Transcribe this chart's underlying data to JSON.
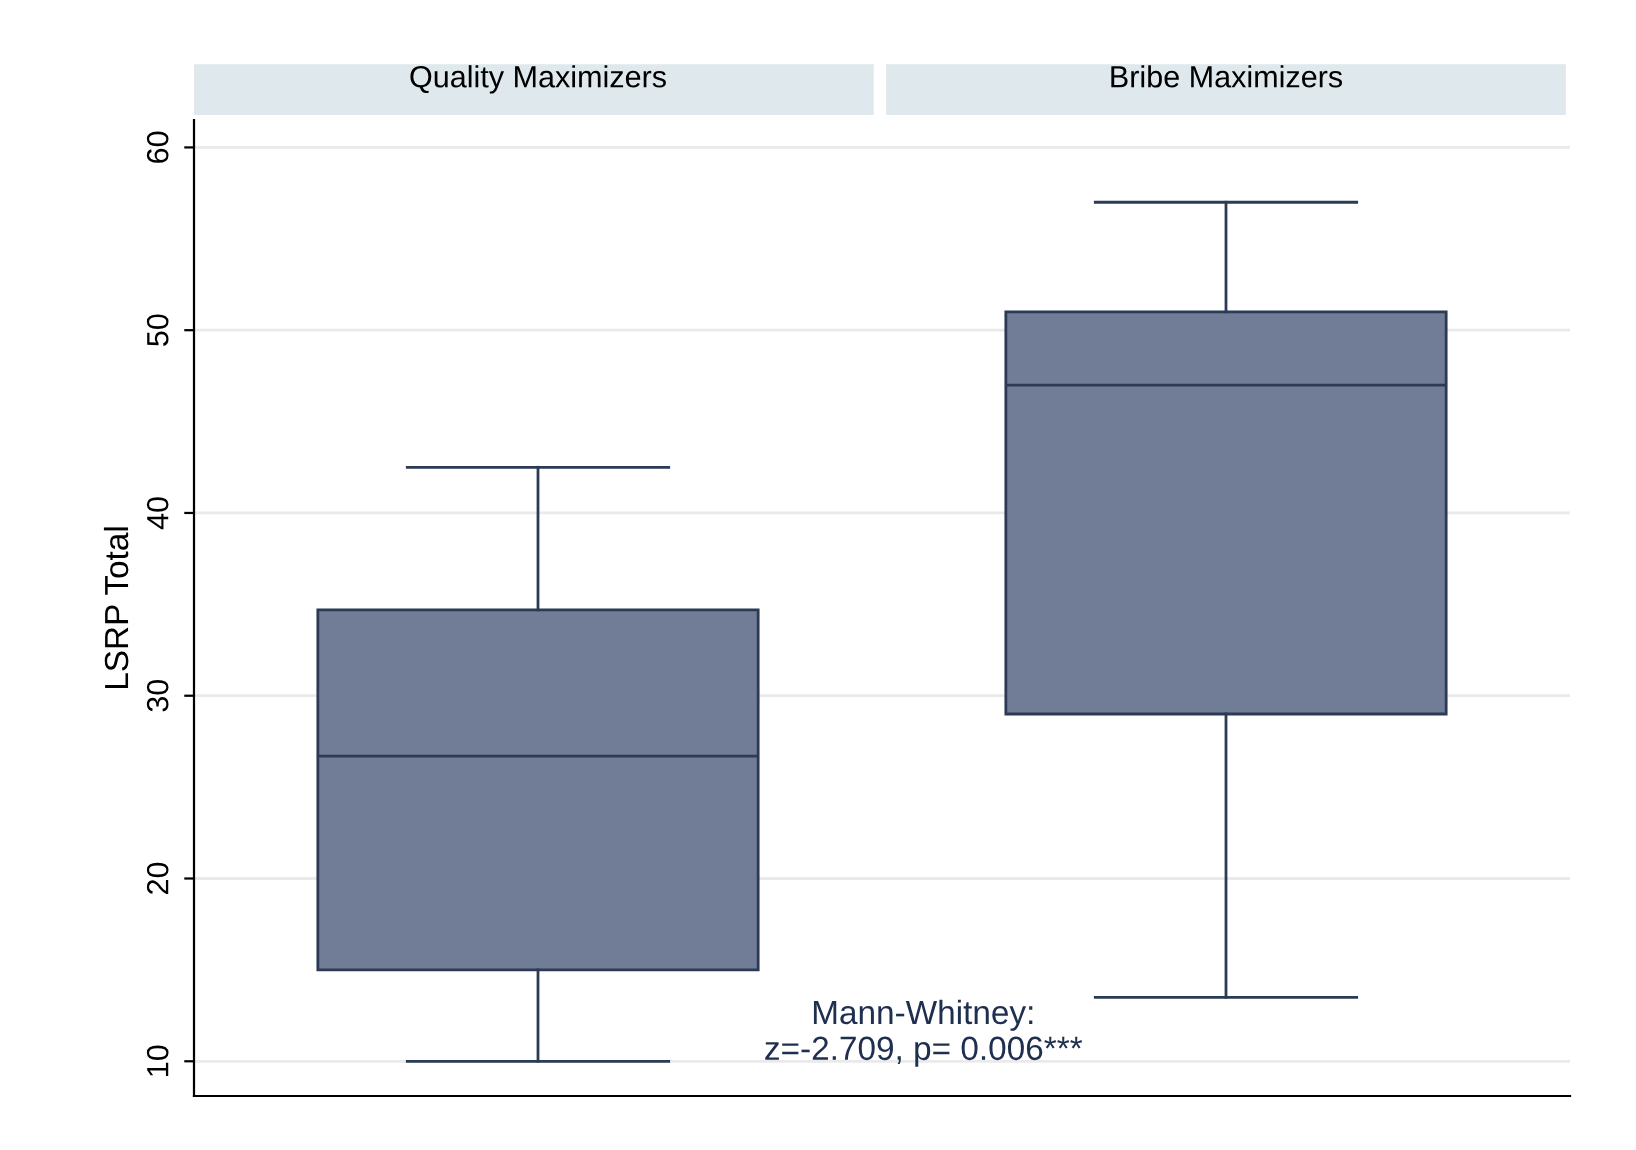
{
  "chart_data": {
    "type": "box",
    "ylabel": "LSRP Total",
    "categories": [
      "Quality Maximizers",
      "Bribe Maximizers"
    ],
    "color": "#717d96",
    "boxes": [
      {
        "low": 10,
        "q1": 15,
        "median": 26.7,
        "q3": 34.7,
        "high": 42.5
      },
      {
        "low": 13.5,
        "q1": 29,
        "median": 47,
        "q3": 51,
        "high": 57
      }
    ],
    "ylim": [
      8.1,
      61.5
    ],
    "yticks": [
      10,
      20,
      30,
      40,
      50,
      60
    ],
    "grid": "y",
    "annotations": [
      "Mann-Whitney:\nz=-2.709, p= 0.006***"
    ]
  }
}
